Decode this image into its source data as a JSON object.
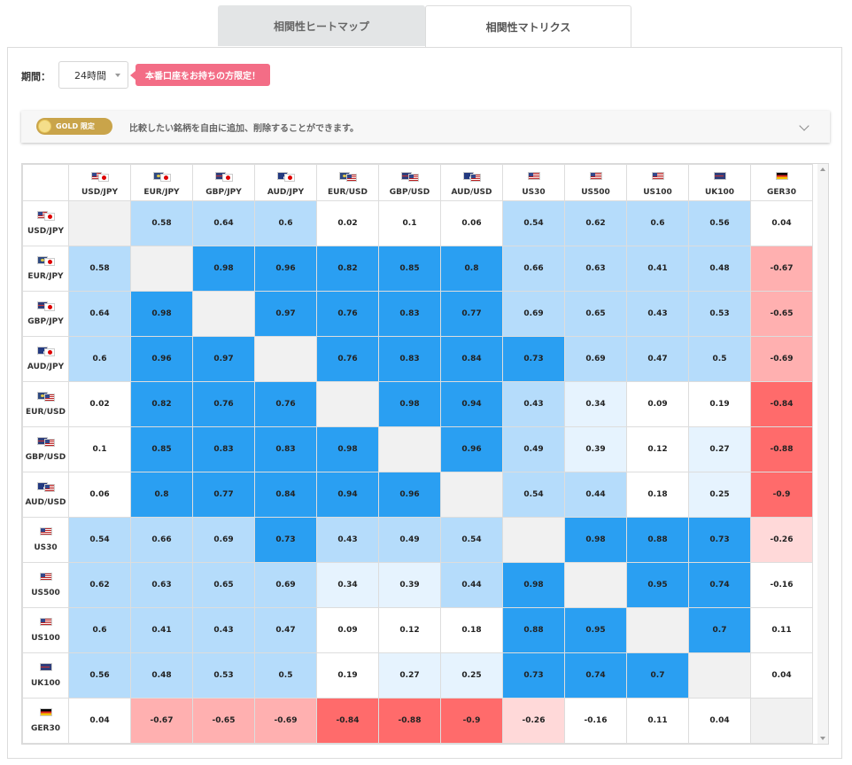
{
  "tabs": [
    {
      "label": "相関性ヒートマップ"
    },
    {
      "label": "相関性マトリクス"
    }
  ],
  "period": {
    "label": "期間：",
    "value": "24時間"
  },
  "promo": "本番口座をお持ちの方限定！",
  "gold": {
    "badge": "GOLD 限定",
    "text": "比較したい銘柄を自由に追加、削除することができます。"
  },
  "symbols": [
    "USD/JPY",
    "EUR/JPY",
    "GBP/JPY",
    "AUD/JPY",
    "EUR/USD",
    "GBP/USD",
    "AUD/USD",
    "US30",
    "US500",
    "US100",
    "UK100",
    "GER30"
  ],
  "flags": [
    [
      "usd",
      "jpy"
    ],
    [
      "eur",
      "jpy"
    ],
    [
      "gbp",
      "jpy"
    ],
    [
      "aud",
      "jpy"
    ],
    [
      "eur",
      "usd"
    ],
    [
      "gbp",
      "usd"
    ],
    [
      "aud",
      "usd"
    ],
    [
      "usd"
    ],
    [
      "usd"
    ],
    [
      "usd"
    ],
    [
      "gbp"
    ],
    [
      "ger"
    ]
  ],
  "matrix": [
    [
      null,
      "0.58",
      "0.64",
      "0.6",
      "0.02",
      "0.1",
      "0.06",
      "0.54",
      "0.62",
      "0.6",
      "0.56",
      "0.04"
    ],
    [
      "0.58",
      null,
      "0.98",
      "0.96",
      "0.82",
      "0.85",
      "0.8",
      "0.66",
      "0.63",
      "0.41",
      "0.48",
      "-0.67"
    ],
    [
      "0.64",
      "0.98",
      null,
      "0.97",
      "0.76",
      "0.83",
      "0.77",
      "0.69",
      "0.65",
      "0.43",
      "0.53",
      "-0.65"
    ],
    [
      "0.6",
      "0.96",
      "0.97",
      null,
      "0.76",
      "0.83",
      "0.84",
      "0.73",
      "0.69",
      "0.47",
      "0.5",
      "-0.69"
    ],
    [
      "0.02",
      "0.82",
      "0.76",
      "0.76",
      null,
      "0.98",
      "0.94",
      "0.43",
      "0.34",
      "0.09",
      "0.19",
      "-0.84"
    ],
    [
      "0.1",
      "0.85",
      "0.83",
      "0.83",
      "0.98",
      null,
      "0.96",
      "0.49",
      "0.39",
      "0.12",
      "0.27",
      "-0.88"
    ],
    [
      "0.06",
      "0.8",
      "0.77",
      "0.84",
      "0.94",
      "0.96",
      null,
      "0.54",
      "0.44",
      "0.18",
      "0.25",
      "-0.9"
    ],
    [
      "0.54",
      "0.66",
      "0.69",
      "0.73",
      "0.43",
      "0.49",
      "0.54",
      null,
      "0.98",
      "0.88",
      "0.73",
      "-0.26"
    ],
    [
      "0.62",
      "0.63",
      "0.65",
      "0.69",
      "0.34",
      "0.39",
      "0.44",
      "0.98",
      null,
      "0.95",
      "0.74",
      "-0.16"
    ],
    [
      "0.6",
      "0.41",
      "0.43",
      "0.47",
      "0.09",
      "0.12",
      "0.18",
      "0.88",
      "0.95",
      null,
      "0.7",
      "0.11"
    ],
    [
      "0.56",
      "0.48",
      "0.53",
      "0.5",
      "0.19",
      "0.27",
      "0.25",
      "0.73",
      "0.74",
      "0.7",
      null,
      "0.04"
    ],
    [
      "0.04",
      "-0.67",
      "-0.65",
      "-0.69",
      "-0.84",
      "-0.88",
      "-0.9",
      "-0.26",
      "-0.16",
      "0.11",
      "0.04",
      null
    ]
  ],
  "colors": {
    "strong_pos": "#2a9ff2",
    "mid_pos": "#b5dcfb",
    "weak_pos": "#e6f3fe",
    "neutral": "#ffffff",
    "diag": "#f1f1f1",
    "weak_neg": "#ffd9d9",
    "mid_neg": "#ffb0b0",
    "strong_neg": "#ff6b6b"
  }
}
